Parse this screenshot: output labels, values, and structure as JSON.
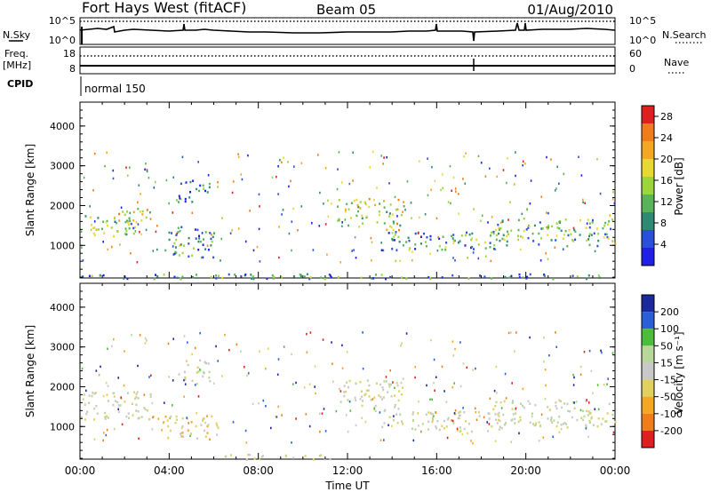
{
  "header": {
    "station": "Fort Hays West (fitACF)",
    "beam": "Beam 05",
    "date": "01/Aug/2010"
  },
  "strip1": {
    "left_label": "N.Sky",
    "right_label": "N.Search",
    "left_ticks": [
      "10^5",
      "10^0"
    ],
    "right_ticks": [
      "10^5",
      "10^0"
    ]
  },
  "strip2": {
    "left_label_1": "Freq.",
    "left_label_2": "[MHz]",
    "right_label": "Nave",
    "left_ticks": [
      "18",
      "8"
    ],
    "right_ticks": [
      "60",
      "0"
    ]
  },
  "cpid": {
    "label": "CPID",
    "mode": "normal 150"
  },
  "x_axis": {
    "title": "Time UT",
    "ticks": [
      "00:00",
      "04:00",
      "08:00",
      "12:00",
      "16:00",
      "20:00",
      "00:00"
    ]
  },
  "colors": {
    "power": [
      "#1f1fe6",
      "#2a4fd8",
      "#2e8a73",
      "#5ab35a",
      "#9ad63c",
      "#e8d832",
      "#f5a623",
      "#f07d1b",
      "#e02020"
    ],
    "velocity": [
      "#e02020",
      "#f07d1b",
      "#f5a623",
      "#e0d060",
      "#c8c8c8",
      "#b8d79a",
      "#4bbd3a",
      "#2a5fd8",
      "#1a2a9a"
    ]
  },
  "chart_data": [
    {
      "type": "heatmap",
      "panel": "power",
      "ylabel": "Slant Range [km]",
      "xlabel": "",
      "ylim": [
        180,
        4600
      ],
      "xlim_hours": [
        0,
        24
      ],
      "y_ticks": [
        "1000",
        "2000",
        "3000",
        "4000"
      ],
      "colorbar_title": "Power [dB]",
      "colorbar_ticks": [
        "4",
        "8",
        "12",
        "16",
        "20",
        "24",
        "28"
      ],
      "colorbar_range": [
        0,
        30
      ],
      "regions": [
        {
          "t": [
            0.0,
            2.5
          ],
          "r": [
            1200,
            1800
          ],
          "level": 14
        },
        {
          "t": [
            1.5,
            3.3
          ],
          "r": [
            1600,
            2000
          ],
          "level": 16
        },
        {
          "t": [
            3.7,
            6.0
          ],
          "r": [
            700,
            1500
          ],
          "level": 8
        },
        {
          "t": [
            4.3,
            5.8
          ],
          "r": [
            2100,
            2700
          ],
          "level": 6
        },
        {
          "t": [
            6.0,
            11.5
          ],
          "r": [
            180,
            320
          ],
          "level": 10
        },
        {
          "t": [
            11.5,
            14.5
          ],
          "r": [
            1400,
            2200
          ],
          "level": 16
        },
        {
          "t": [
            13.5,
            19.0
          ],
          "r": [
            900,
            1400
          ],
          "level": 10
        },
        {
          "t": [
            18.5,
            24.0
          ],
          "r": [
            1000,
            1700
          ],
          "level": 12
        },
        {
          "t": [
            0.0,
            24.0
          ],
          "r": [
            180,
            300
          ],
          "level": 8
        }
      ]
    },
    {
      "type": "heatmap",
      "panel": "velocity",
      "ylabel": "Slant Range [km]",
      "xlabel": "Time UT",
      "ylim": [
        180,
        4600
      ],
      "xlim_hours": [
        0,
        24
      ],
      "y_ticks": [
        "1000",
        "2000",
        "3000",
        "4000"
      ],
      "colorbar_title": "Velocity [m s⁻¹]",
      "colorbar_ticks": [
        "200",
        "100",
        "50",
        "15",
        "-15",
        "-50",
        "-100",
        "-200"
      ],
      "colorbar_range": [
        -250,
        250
      ],
      "regions": [
        {
          "t": [
            0.0,
            3.3
          ],
          "r": [
            1200,
            1900
          ],
          "level": 0
        },
        {
          "t": [
            3.7,
            6.2
          ],
          "r": [
            700,
            1300
          ],
          "level": -60
        },
        {
          "t": [
            4.3,
            5.8
          ],
          "r": [
            2100,
            2700
          ],
          "level": 0
        },
        {
          "t": [
            6.0,
            11.5
          ],
          "r": [
            180,
            320
          ],
          "level": -20
        },
        {
          "t": [
            11.5,
            14.5
          ],
          "r": [
            1400,
            2200
          ],
          "level": 0
        },
        {
          "t": [
            13.5,
            19.0
          ],
          "r": [
            900,
            1400
          ],
          "level": 0
        },
        {
          "t": [
            18.5,
            24.0
          ],
          "r": [
            1000,
            1700
          ],
          "level": 0
        }
      ]
    }
  ]
}
